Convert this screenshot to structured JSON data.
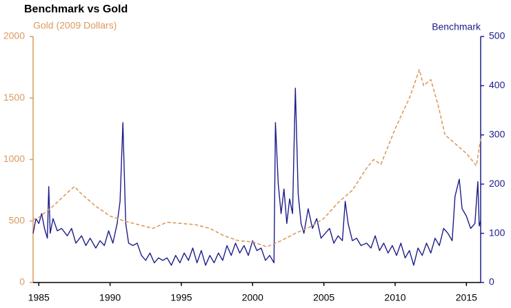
{
  "chart_data": {
    "type": "line",
    "title": "Benchmark vs Gold",
    "xlim": [
      1984.6,
      2016.0
    ],
    "xticks": [
      1985,
      1990,
      1995,
      2000,
      2005,
      2010,
      2015
    ],
    "ylim": [
      0,
      2000
    ],
    "yticks": [
      0,
      500,
      1000,
      1500,
      2000
    ],
    "y2lim": [
      0,
      500
    ],
    "y2ticks": [
      0,
      100,
      200,
      300,
      400,
      500
    ],
    "series": [
      {
        "name": "Gold (2009 Dollars)",
        "color": "#d99a5e",
        "dashed": true,
        "x": [
          1984.6,
          1985,
          1986,
          1987,
          1987.5,
          1988,
          1989,
          1990,
          1991,
          1992,
          1993,
          1994,
          1995,
          1996,
          1997,
          1998,
          1999,
          2000,
          2001,
          2002,
          2003,
          2004,
          2005,
          2006,
          2007,
          2008,
          2008.5,
          2009,
          2010,
          2011,
          2011.7,
          2012,
          2012.5,
          2013,
          2013.5,
          2014,
          2015,
          2015.7,
          2016
        ],
        "values": [
          510,
          530,
          620,
          730,
          780,
          720,
          620,
          540,
          500,
          470,
          440,
          490,
          480,
          470,
          440,
          380,
          340,
          330,
          290,
          340,
          400,
          450,
          520,
          650,
          750,
          930,
          1000,
          960,
          1250,
          1500,
          1730,
          1600,
          1650,
          1450,
          1200,
          1150,
          1050,
          950,
          1170
        ]
      },
      {
        "name": "Benchmark",
        "color": "#1c1c8a",
        "axis": "y2",
        "x": [
          1984.6,
          1984.8,
          1985.0,
          1985.2,
          1985.4,
          1985.6,
          1985.7,
          1985.8,
          1986.0,
          1986.3,
          1986.6,
          1987.0,
          1987.3,
          1987.6,
          1988.0,
          1988.3,
          1988.6,
          1989.0,
          1989.3,
          1989.6,
          1989.9,
          1990.2,
          1990.5,
          1990.7,
          1990.9,
          1991.1,
          1991.3,
          1991.6,
          1991.9,
          1992.2,
          1992.5,
          1992.8,
          1993.1,
          1993.4,
          1993.7,
          1994.0,
          1994.3,
          1994.6,
          1994.9,
          1995.2,
          1995.5,
          1995.8,
          1996.1,
          1996.4,
          1996.7,
          1997.0,
          1997.3,
          1997.6,
          1997.9,
          1998.2,
          1998.5,
          1998.8,
          1999.1,
          1999.4,
          1999.7,
          2000.0,
          2000.3,
          2000.6,
          2000.9,
          2001.2,
          2001.5,
          2001.6,
          2001.8,
          2002.0,
          2002.2,
          2002.4,
          2002.6,
          2002.8,
          2003.0,
          2003.2,
          2003.4,
          2003.6,
          2003.9,
          2004.2,
          2004.5,
          2004.8,
          2005.1,
          2005.4,
          2005.7,
          2006.0,
          2006.3,
          2006.5,
          2006.7,
          2007.0,
          2007.3,
          2007.6,
          2008.0,
          2008.3,
          2008.6,
          2008.9,
          2009.2,
          2009.5,
          2009.8,
          2010.1,
          2010.4,
          2010.7,
          2011.0,
          2011.3,
          2011.6,
          2011.9,
          2012.2,
          2012.5,
          2012.8,
          2013.1,
          2013.4,
          2013.7,
          2014.0,
          2014.2,
          2014.5,
          2014.7,
          2015.0,
          2015.3,
          2015.6,
          2015.8,
          2015.9,
          2016.0
        ],
        "values": [
          100,
          130,
          120,
          140,
          110,
          90,
          195,
          100,
          130,
          105,
          110,
          95,
          110,
          80,
          95,
          75,
          90,
          70,
          85,
          75,
          105,
          80,
          120,
          165,
          325,
          120,
          80,
          75,
          80,
          55,
          45,
          60,
          40,
          50,
          45,
          50,
          35,
          55,
          40,
          60,
          45,
          70,
          40,
          65,
          35,
          55,
          40,
          60,
          45,
          75,
          55,
          80,
          60,
          75,
          55,
          85,
          65,
          70,
          45,
          55,
          40,
          325,
          200,
          140,
          190,
          120,
          170,
          140,
          395,
          180,
          120,
          100,
          150,
          110,
          130,
          90,
          100,
          110,
          80,
          95,
          85,
          165,
          120,
          85,
          90,
          75,
          80,
          70,
          95,
          65,
          80,
          60,
          75,
          55,
          80,
          50,
          65,
          35,
          70,
          55,
          80,
          60,
          90,
          75,
          110,
          100,
          85,
          175,
          210,
          150,
          135,
          110,
          120,
          205,
          115,
          125
        ]
      }
    ]
  }
}
